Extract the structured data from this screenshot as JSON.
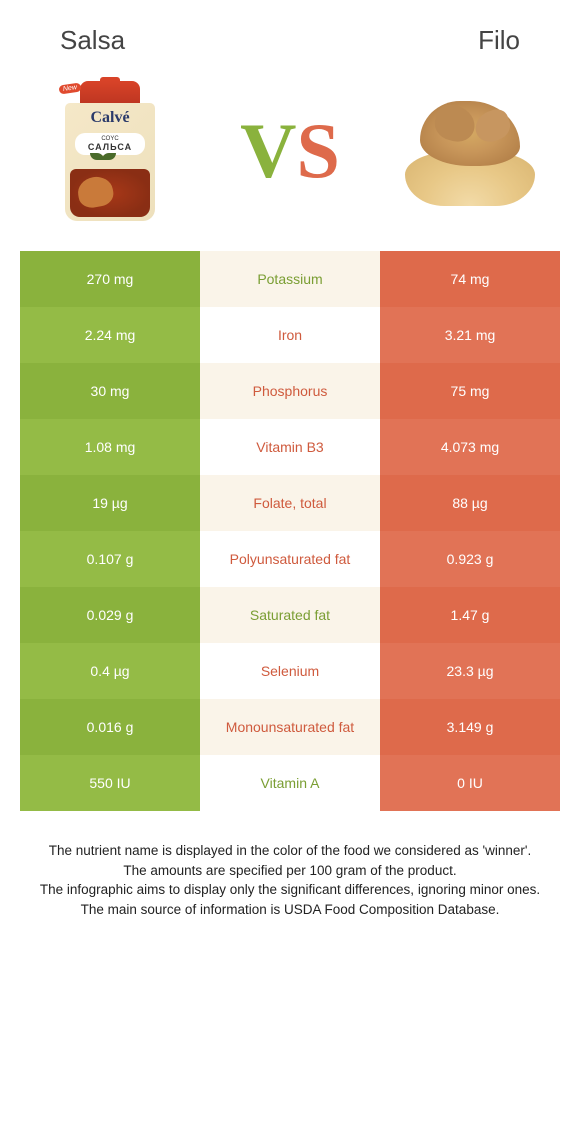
{
  "header": {
    "left": "Salsa",
    "right": "Filo"
  },
  "vs": {
    "v": "V",
    "s": "S"
  },
  "colors": {
    "green_a": "#8ab23d",
    "green_b": "#94bb46",
    "orange_a": "#de6a4b",
    "orange_b": "#e17356",
    "mid_a": "#faf4e9",
    "mid_b": "#ffffff",
    "text_green": "#7a9e33",
    "text_orange": "#cf5a3d"
  },
  "rows": [
    {
      "nutrient": "Potassium",
      "left": "270 mg",
      "right": "74 mg",
      "winner": "left"
    },
    {
      "nutrient": "Iron",
      "left": "2.24 mg",
      "right": "3.21 mg",
      "winner": "right"
    },
    {
      "nutrient": "Phosphorus",
      "left": "30 mg",
      "right": "75 mg",
      "winner": "right"
    },
    {
      "nutrient": "Vitamin B3",
      "left": "1.08 mg",
      "right": "4.073 mg",
      "winner": "right"
    },
    {
      "nutrient": "Folate, total",
      "left": "19 µg",
      "right": "88 µg",
      "winner": "right"
    },
    {
      "nutrient": "Polyunsaturated fat",
      "left": "0.107 g",
      "right": "0.923 g",
      "winner": "right"
    },
    {
      "nutrient": "Saturated fat",
      "left": "0.029 g",
      "right": "1.47 g",
      "winner": "left"
    },
    {
      "nutrient": "Selenium",
      "left": "0.4 µg",
      "right": "23.3 µg",
      "winner": "right"
    },
    {
      "nutrient": "Monounsaturated fat",
      "left": "0.016 g",
      "right": "3.149 g",
      "winner": "right"
    },
    {
      "nutrient": "Vitamin A",
      "left": "550 IU",
      "right": "0 IU",
      "winner": "left"
    }
  ],
  "footer": {
    "line1": "The nutrient name is displayed in the color of the food we considered as 'winner'.",
    "line2": "The amounts are specified per 100 gram of the product.",
    "line3": "The infographic aims to display only the significant differences, ignoring minor ones.",
    "line4": "The main source of information is USDA Food Composition Database."
  },
  "salsa_img": {
    "brand": "Calvé",
    "type_small": "COYC",
    "type": "САЛЬСА",
    "badge": "New"
  }
}
